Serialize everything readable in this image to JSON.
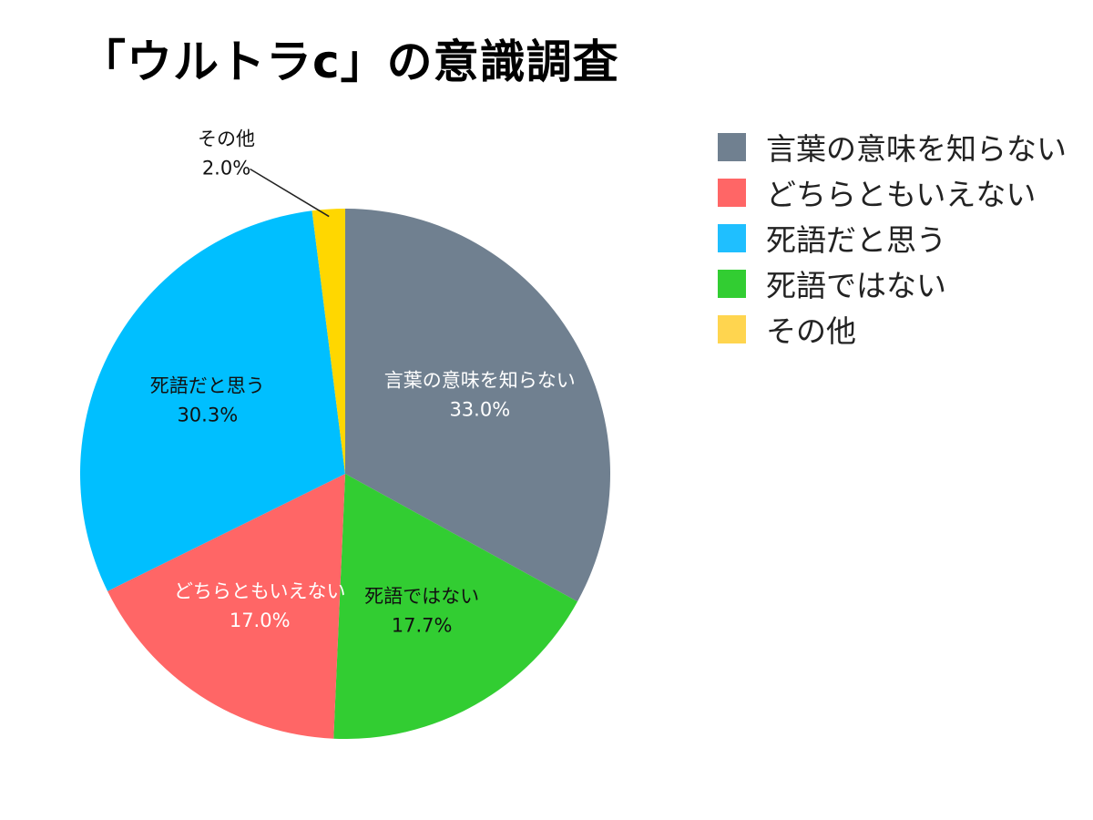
{
  "title": "「ウルトラc」の意識調査",
  "chart_data": {
    "type": "pie",
    "title": "「ウルトラc」の意識調査",
    "start_angle_deg": 0,
    "direction": "clockwise",
    "legend_position": "right",
    "slices": [
      {
        "label": "言葉の意味を知らない",
        "value": 33.0,
        "display": "33.0%",
        "color": "#708090",
        "text_color": "#ffffff"
      },
      {
        "label": "死語ではない",
        "value": 17.7,
        "display": "17.7%",
        "color": "#32cd32",
        "text_color": "#111111"
      },
      {
        "label": "どちらともいえない",
        "value": 17.0,
        "display": "17.0%",
        "color": "#ff6666",
        "text_color": "#ffffff"
      },
      {
        "label": "死語だと思う",
        "value": 30.3,
        "display": "30.3%",
        "color": "#00bfff",
        "text_color": "#111111"
      },
      {
        "label": "その他",
        "value": 2.0,
        "display": "2.0%",
        "color": "#ffd700",
        "text_color": "#111111"
      }
    ]
  },
  "legend": [
    {
      "label": "言葉の意味を知らない",
      "color": "#708090"
    },
    {
      "label": "どちらともいえない",
      "color": "#ff6666"
    },
    {
      "label": "死語だと思う",
      "color": "#1fbfff"
    },
    {
      "label": "死語ではない",
      "color": "#32cd32"
    },
    {
      "label": "その他",
      "color": "#ffd54f"
    }
  ]
}
